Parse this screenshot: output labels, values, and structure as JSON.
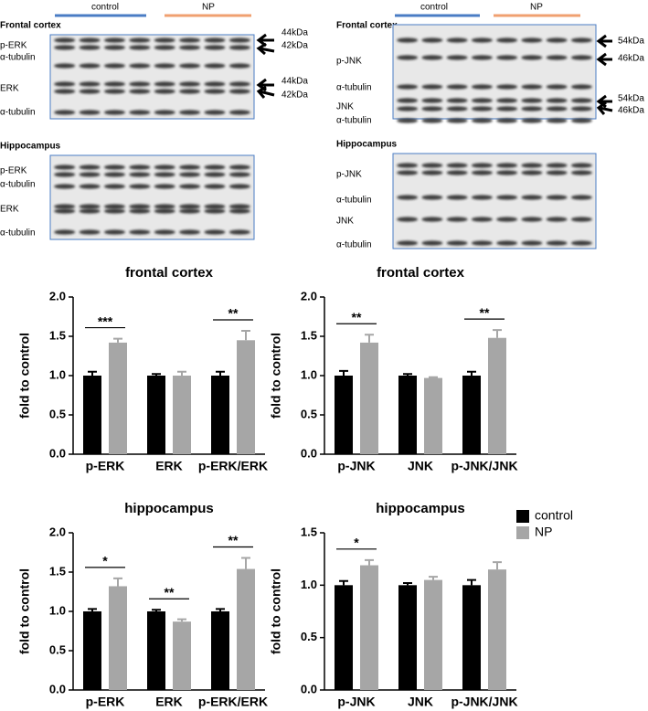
{
  "blots": [
    {
      "groups": [
        "control",
        "NP"
      ],
      "regions": [
        {
          "title": "Frontal cortex",
          "rows": [
            "p-ERK",
            "α-tubulin",
            "ERK",
            "α-tubulin"
          ],
          "sizes": [
            "44kDa",
            "42kDa",
            "44kDa",
            "42kDa"
          ]
        },
        {
          "title": "Hippocampus",
          "rows": [
            "p-ERK",
            "α-tubulin",
            "ERK",
            "α-tubulin"
          ]
        }
      ]
    },
    {
      "groups": [
        "control",
        "NP"
      ],
      "regions": [
        {
          "title": "Frontal cortex",
          "rows": [
            "p-JNK",
            "α-tubulin",
            "JNK",
            "α-tubulin"
          ],
          "sizes": [
            "54kDa",
            "46kDa",
            "54kDa",
            "46kDa"
          ]
        },
        {
          "title": "Hippocampus",
          "rows": [
            "p-JNK",
            "α-tubulin",
            "JNK",
            "α-tubulin"
          ]
        }
      ]
    }
  ],
  "chart_data": [
    {
      "type": "bar",
      "title": "frontal cortex",
      "y_label": "fold to control",
      "categories": [
        "p-ERK",
        "ERK",
        "p-ERK/ERK"
      ],
      "series": [
        {
          "name": "control",
          "color": "#000000",
          "values": [
            1.0,
            1.0,
            1.0
          ],
          "errors": [
            0.05,
            0.02,
            0.05
          ]
        },
        {
          "name": "NP",
          "color": "#a6a6a6",
          "values": [
            1.42,
            1.0,
            1.45
          ],
          "errors": [
            0.05,
            0.05,
            0.12
          ]
        }
      ],
      "significance": [
        "***",
        null,
        "**"
      ],
      "ylim": [
        0,
        2
      ],
      "yticks": [
        {
          "value": 0,
          "label": "0.0"
        },
        0.5,
        {
          "value": 1,
          "label": "1.0"
        },
        1.5,
        {
          "value": 2,
          "label": "2.0"
        }
      ]
    },
    {
      "type": "bar",
      "title": "frontal cortex",
      "y_label": "fold to control",
      "categories": [
        "p-JNK",
        "JNK",
        "p-JNK/JNK"
      ],
      "series": [
        {
          "name": "control",
          "color": "#000000",
          "values": [
            1.0,
            1.0,
            1.0
          ],
          "errors": [
            0.06,
            0.02,
            0.05
          ]
        },
        {
          "name": "NP",
          "color": "#a6a6a6",
          "values": [
            1.42,
            0.97,
            1.48
          ],
          "errors": [
            0.1,
            0.01,
            0.1
          ]
        }
      ],
      "significance": [
        "**",
        null,
        "**"
      ],
      "ylim": [
        0,
        2
      ],
      "yticks": [
        {
          "value": 0,
          "label": "0.0"
        },
        0.5,
        {
          "value": 1,
          "label": "1.0"
        },
        1.5,
        {
          "value": 2,
          "label": "2.0"
        }
      ]
    },
    {
      "type": "bar",
      "title": "hippocampus",
      "y_label": "fold to control",
      "categories": [
        "p-ERK",
        "ERK",
        "p-ERK/ERK"
      ],
      "series": [
        {
          "name": "control",
          "color": "#000000",
          "values": [
            1.0,
            1.0,
            1.0
          ],
          "errors": [
            0.03,
            0.02,
            0.03
          ]
        },
        {
          "name": "NP",
          "color": "#a6a6a6",
          "values": [
            1.32,
            0.87,
            1.54
          ],
          "errors": [
            0.1,
            0.03,
            0.14
          ]
        }
      ],
      "significance": [
        "*",
        "**",
        "**"
      ],
      "ylim": [
        0,
        2
      ],
      "yticks": [
        {
          "value": 0,
          "label": "0.0"
        },
        0.5,
        {
          "value": 1,
          "label": "1.0"
        },
        1.5,
        {
          "value": 2,
          "label": "2.0"
        }
      ]
    },
    {
      "type": "bar",
      "title": "hippocampus",
      "y_label": "fold to control",
      "categories": [
        "p-JNK",
        "JNK",
        "p-JNK/JNK"
      ],
      "series": [
        {
          "name": "control",
          "color": "#000000",
          "values": [
            1.0,
            1.0,
            1.0
          ],
          "errors": [
            0.04,
            0.02,
            0.05
          ]
        },
        {
          "name": "NP",
          "color": "#a6a6a6",
          "values": [
            1.19,
            1.05,
            1.15
          ],
          "errors": [
            0.05,
            0.03,
            0.07
          ]
        }
      ],
      "significance": [
        "*",
        null,
        null
      ],
      "legend": "upper right",
      "ylim": [
        0,
        1.5
      ],
      "yticks": [
        {
          "value": 0,
          "label": "0.0"
        },
        0.5,
        {
          "value": 1,
          "label": "1.0"
        },
        {
          "value": 1.5,
          "label": "1.5"
        }
      ]
    }
  ]
}
